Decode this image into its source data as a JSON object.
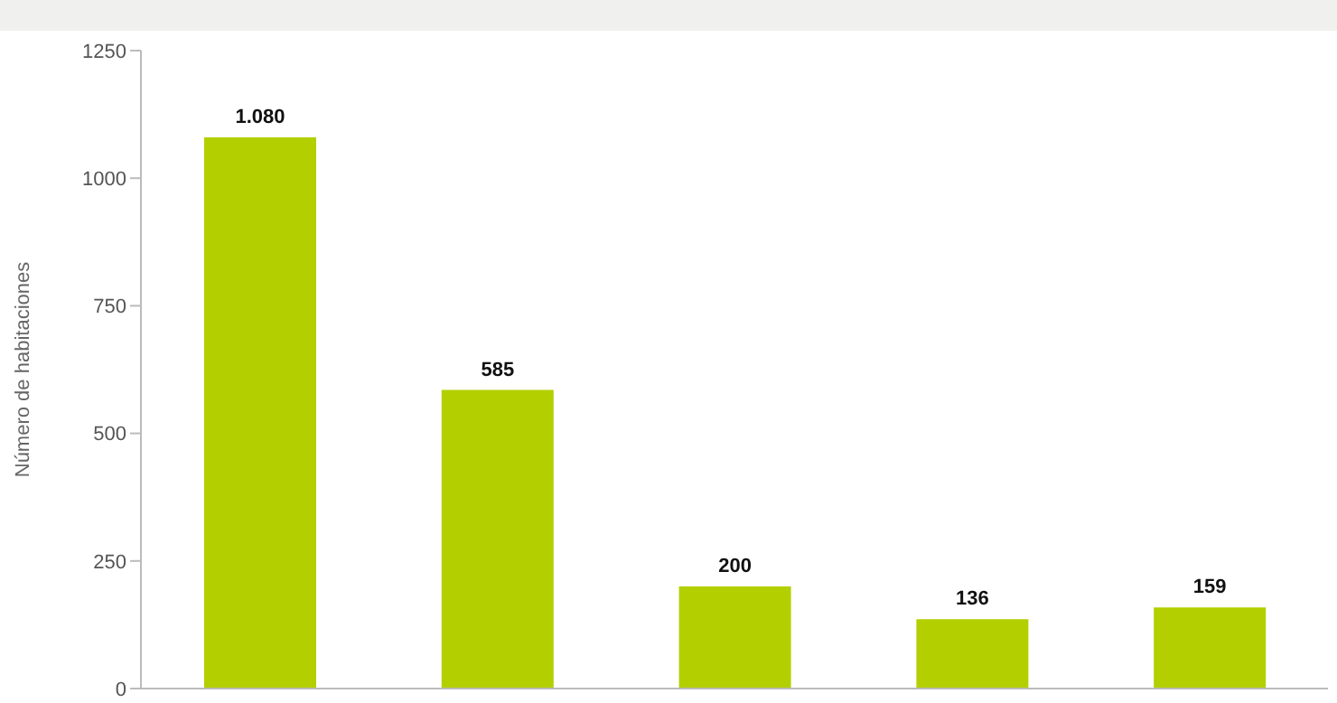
{
  "chart_data": {
    "type": "bar",
    "ylabel": "Número de habitaciones",
    "categories": [
      null,
      null,
      null,
      null,
      null
    ],
    "values": [
      1080,
      585,
      200,
      136,
      159
    ],
    "value_labels": [
      "1.080",
      "585",
      "200",
      "136",
      "159"
    ],
    "color": "#b3cf00",
    "ylim": [
      0,
      1250
    ],
    "yticks": [
      0,
      250,
      500,
      750,
      1000,
      1250
    ],
    "grid": false
  }
}
